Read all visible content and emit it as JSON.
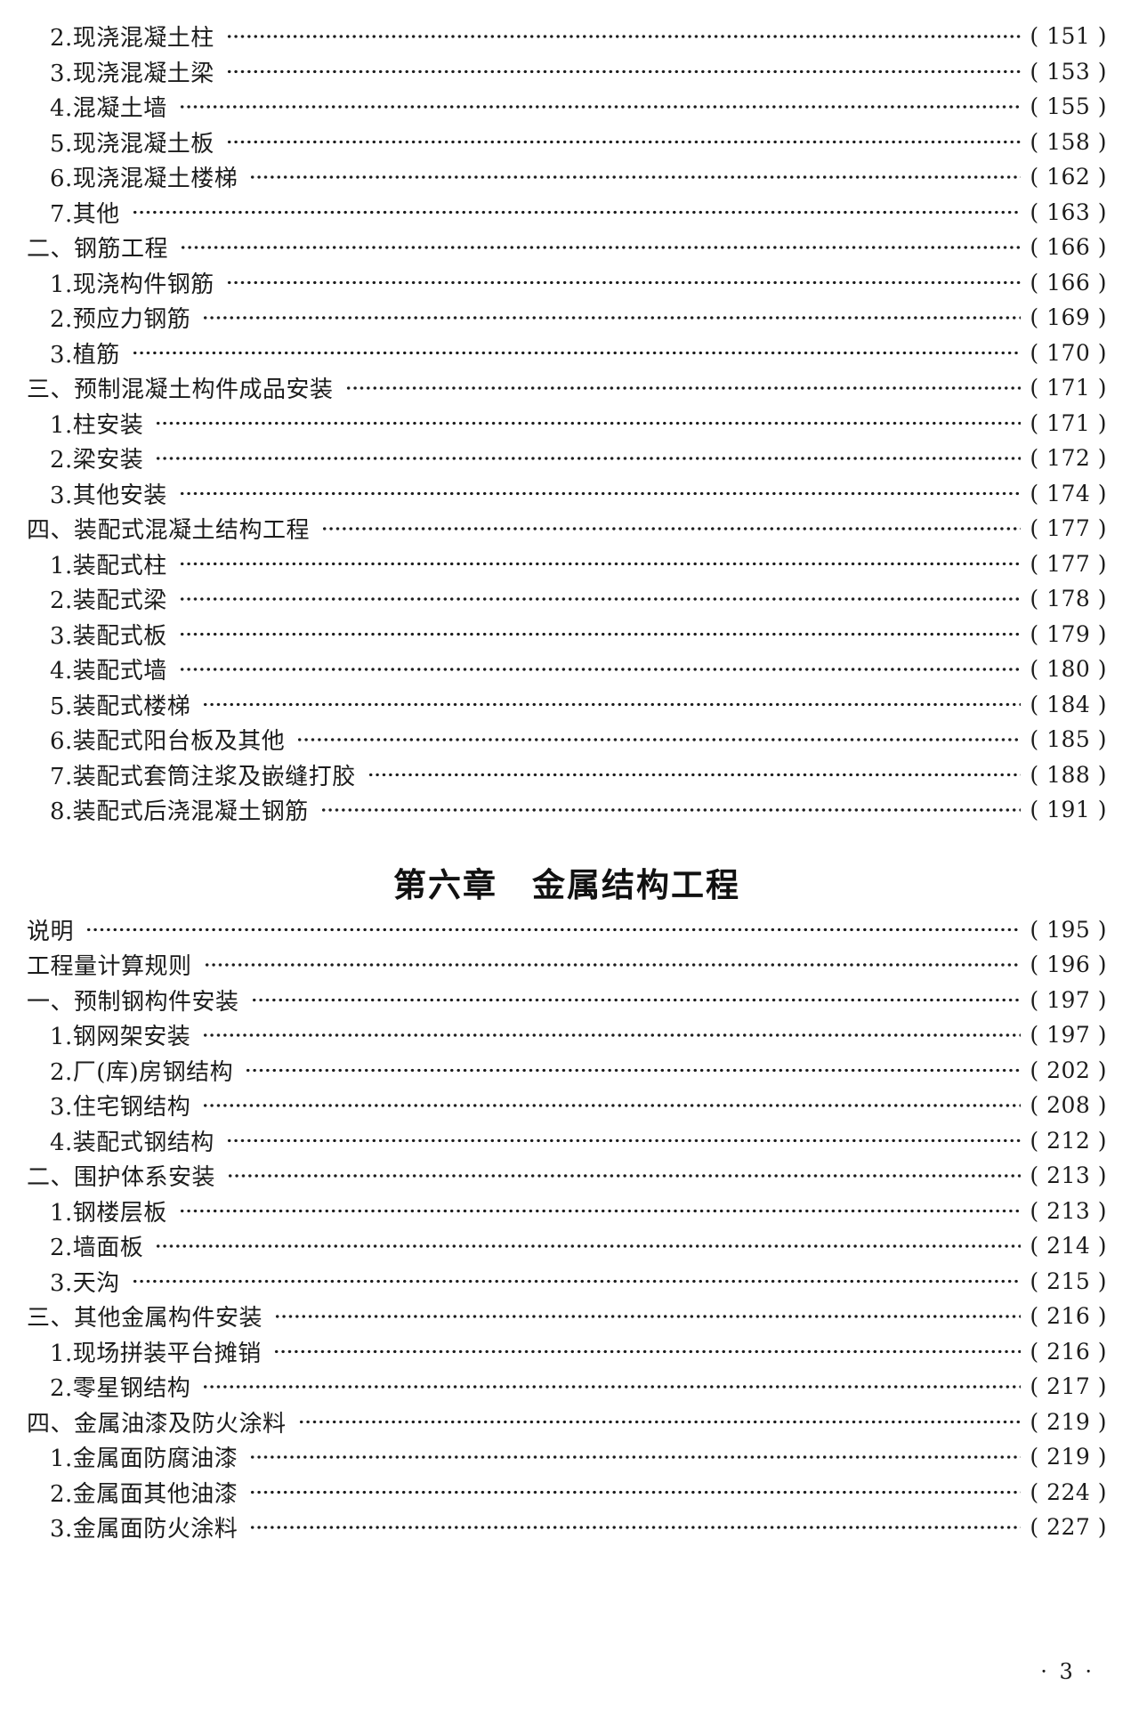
{
  "toc": {
    "entries_before_heading": [
      {
        "label": "2.现浇混凝土柱",
        "page": "( 151 )",
        "level": 2
      },
      {
        "label": "3.现浇混凝土梁",
        "page": "( 153 )",
        "level": 2
      },
      {
        "label": "4.混凝土墙",
        "page": "( 155 )",
        "level": 2
      },
      {
        "label": "5.现浇混凝土板",
        "page": "( 158 )",
        "level": 2
      },
      {
        "label": "6.现浇混凝土楼梯",
        "page": "( 162 )",
        "level": 2
      },
      {
        "label": "7.其他",
        "page": "( 163 )",
        "level": 2
      },
      {
        "label": "二、钢筋工程",
        "page": "( 166 )",
        "level": 1
      },
      {
        "label": "1.现浇构件钢筋",
        "page": "( 166 )",
        "level": 2
      },
      {
        "label": "2.预应力钢筋",
        "page": "( 169 )",
        "level": 2
      },
      {
        "label": "3.植筋",
        "page": "( 170 )",
        "level": 2
      },
      {
        "label": "三、预制混凝土构件成品安装",
        "page": "( 171 )",
        "level": 1
      },
      {
        "label": "1.柱安装",
        "page": "( 171 )",
        "level": 2
      },
      {
        "label": "2.梁安装",
        "page": "( 172 )",
        "level": 2
      },
      {
        "label": "3.其他安装",
        "page": "( 174 )",
        "level": 2
      },
      {
        "label": "四、装配式混凝土结构工程",
        "page": "( 177 )",
        "level": 1
      },
      {
        "label": "1.装配式柱",
        "page": "( 177 )",
        "level": 2
      },
      {
        "label": "2.装配式梁",
        "page": "( 178 )",
        "level": 2
      },
      {
        "label": "3.装配式板",
        "page": "( 179 )",
        "level": 2
      },
      {
        "label": "4.装配式墙",
        "page": "( 180 )",
        "level": 2
      },
      {
        "label": "5.装配式楼梯",
        "page": "( 184 )",
        "level": 2
      },
      {
        "label": "6.装配式阳台板及其他",
        "page": "( 185 )",
        "level": 2
      },
      {
        "label": "7.装配式套筒注浆及嵌缝打胶",
        "page": "( 188 )",
        "level": 2
      },
      {
        "label": "8.装配式后浇混凝土钢筋",
        "page": "( 191 )",
        "level": 2
      }
    ],
    "chapter_heading": "第六章　金属结构工程",
    "entries_after_heading": [
      {
        "label": "说明",
        "page": "( 195 )",
        "level": 1
      },
      {
        "label": "工程量计算规则",
        "page": "( 196 )",
        "level": 1
      },
      {
        "label": "一、预制钢构件安装",
        "page": "( 197 )",
        "level": 1
      },
      {
        "label": "1.钢网架安装",
        "page": "( 197 )",
        "level": 2
      },
      {
        "label": "2.厂(库)房钢结构",
        "page": "( 202 )",
        "level": 2
      },
      {
        "label": "3.住宅钢结构",
        "page": "( 208 )",
        "level": 2
      },
      {
        "label": "4.装配式钢结构",
        "page": "( 212 )",
        "level": 2
      },
      {
        "label": "二、围护体系安装",
        "page": "( 213 )",
        "level": 1
      },
      {
        "label": "1.钢楼层板",
        "page": "( 213 )",
        "level": 2
      },
      {
        "label": "2.墙面板",
        "page": "( 214 )",
        "level": 2
      },
      {
        "label": "3.天沟",
        "page": "( 215 )",
        "level": 2
      },
      {
        "label": "三、其他金属构件安装",
        "page": "( 216 )",
        "level": 1
      },
      {
        "label": "1.现场拼装平台摊销",
        "page": "( 216 )",
        "level": 2
      },
      {
        "label": "2.零星钢结构",
        "page": "( 217 )",
        "level": 2
      },
      {
        "label": "四、金属油漆及防火涂料",
        "page": "( 219 )",
        "level": 1
      },
      {
        "label": "1.金属面防腐油漆",
        "page": "( 219 )",
        "level": 2
      },
      {
        "label": "2.金属面其他油漆",
        "page": "( 224 )",
        "level": 2
      },
      {
        "label": "3.金属面防火涂料",
        "page": "( 227 )",
        "level": 2
      }
    ]
  },
  "footer": {
    "page_number": "· 3 ·"
  }
}
